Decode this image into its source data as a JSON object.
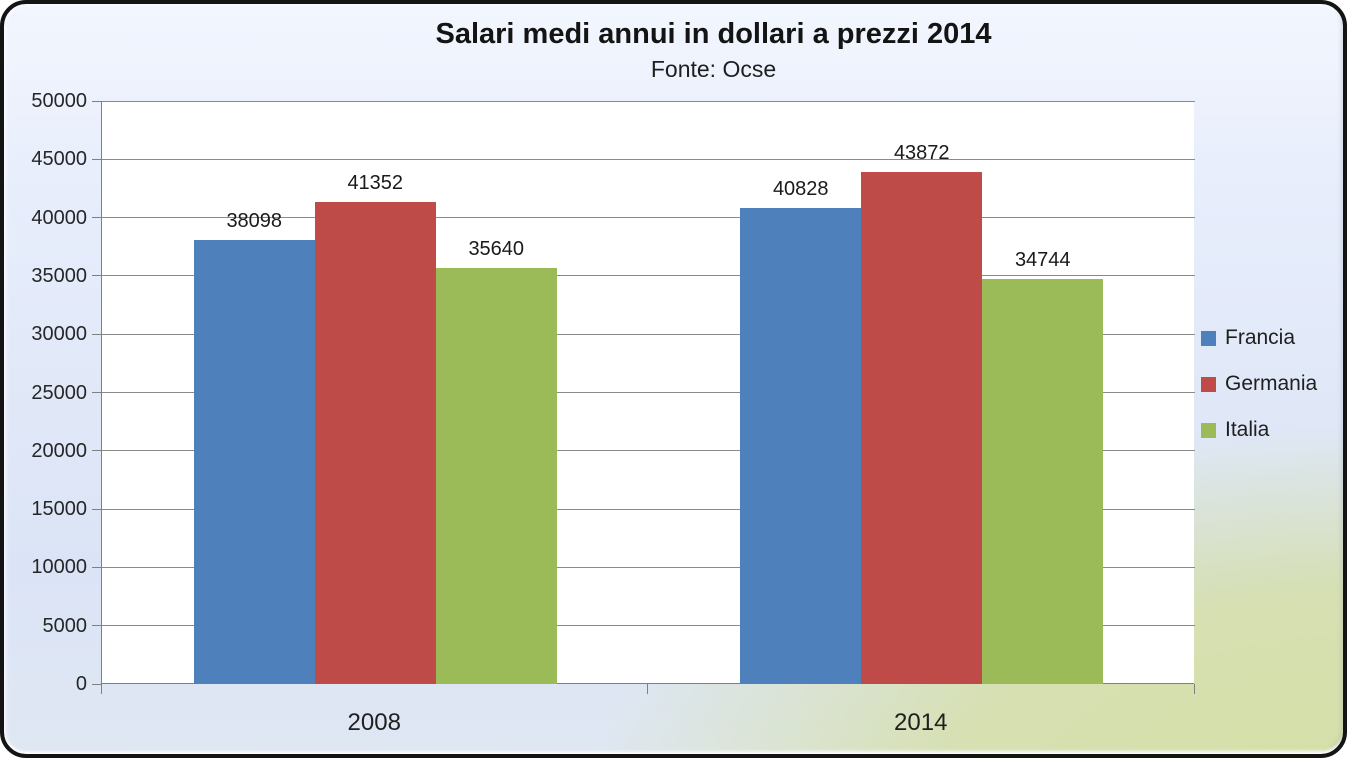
{
  "chart_data": {
    "type": "bar",
    "title": "Salari medi annui in dollari a prezzi 2014",
    "subtitle": "Fonte: Ocse",
    "categories": [
      "2008",
      "2014"
    ],
    "series": [
      {
        "name": "Francia",
        "color": "#4E80BC",
        "values": [
          38098,
          40828
        ]
      },
      {
        "name": "Germania",
        "color": "#BE4B48",
        "values": [
          41352,
          43872
        ]
      },
      {
        "name": "Italia",
        "color": "#9BBB59",
        "values": [
          35640,
          34744
        ]
      }
    ],
    "ylim": [
      0,
      50000
    ],
    "ytick_step": 5000,
    "ytick_labels": [
      "0",
      "5000",
      "10000",
      "15000",
      "20000",
      "25000",
      "30000",
      "35000",
      "40000",
      "45000",
      "50000"
    ],
    "grid": true,
    "data_labels": true,
    "data_label_values": [
      "38098",
      "41352",
      "35640",
      "40828",
      "43872",
      "34744"
    ],
    "legend_position": "right",
    "xlabel": "",
    "ylabel": ""
  },
  "colors": {
    "frame_border": "#141414",
    "background_blue_top": "#f2f6fe",
    "background_blue": "#dbe4f6",
    "background_green_corner": "#d5dfa6",
    "plot_background": "#ffffff",
    "gridline": "#8a8a8a",
    "axis_line": "#808080",
    "text": "#1f1f1f"
  }
}
